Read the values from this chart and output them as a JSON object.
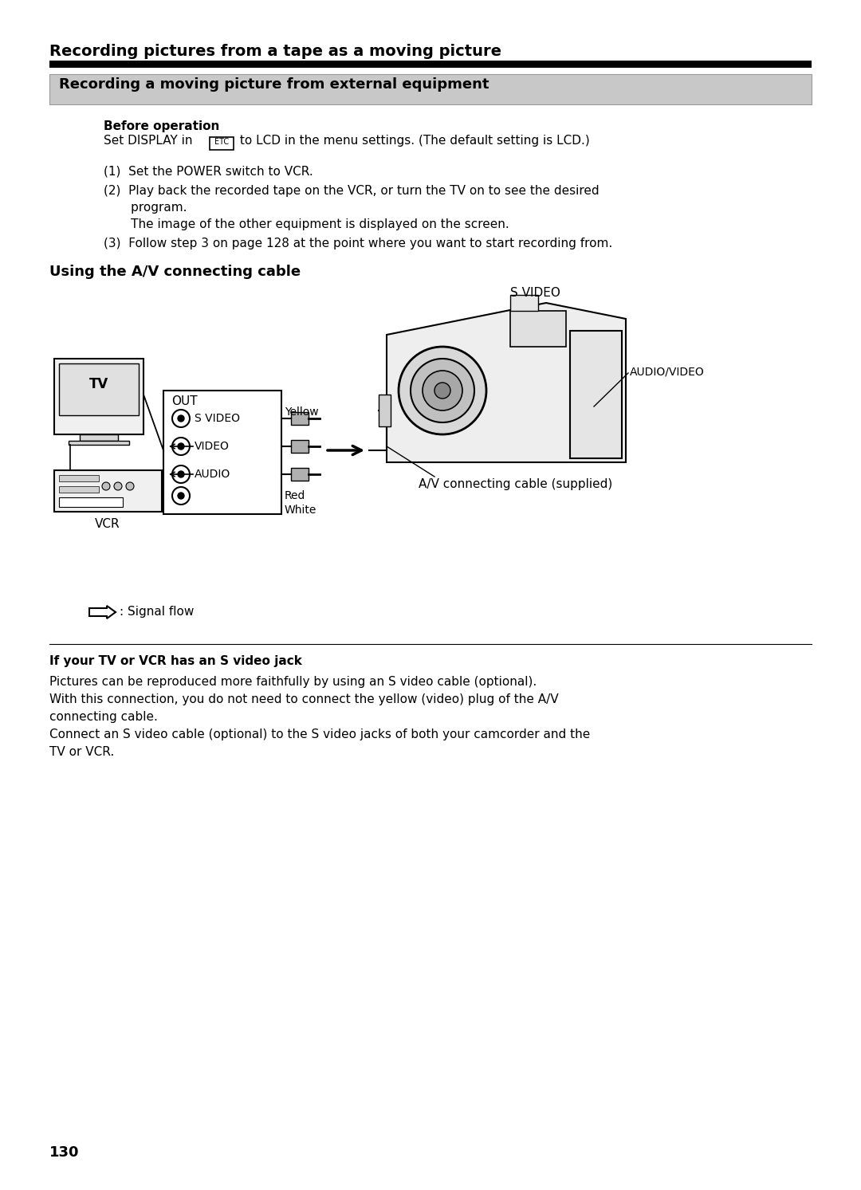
{
  "page_number": "130",
  "main_title": "Recording pictures from a tape as a moving picture",
  "section_title": "Recording a moving picture from external equipment",
  "before_op_label": "Before operation",
  "step1": "(1)  Set the POWER switch to VCR.",
  "step2a": "(2)  Play back the recorded tape on the VCR, or turn the TV on to see the desired",
  "step2b": "       program.",
  "step2c": "       The image of the other equipment is displayed on the screen.",
  "step3": "(3)  Follow step 3 on page 128 at the point where you want to start recording from.",
  "sub_heading": "Using the A/V connecting cable",
  "lbl_out": "OUT",
  "lbl_svideo": "S VIDEO",
  "lbl_video": "VIDEO",
  "lbl_audio": "AUDIO",
  "lbl_yellow": "Yellow",
  "lbl_red": "Red",
  "lbl_white": "White",
  "lbl_tv": "TV",
  "lbl_vcr": "VCR",
  "lbl_signal": ": Signal flow",
  "lbl_av_cable": "A/V connecting cable (supplied)",
  "lbl_s_video_top": "S VIDEO",
  "lbl_audio_video": "AUDIO/VIDEO",
  "note_title": "If your TV or VCR has an S video jack",
  "note_line1": "Pictures can be reproduced more faithfully by using an S video cable (optional).",
  "note_line2": "With this connection, you do not need to connect the yellow (video) plug of the A/V",
  "note_line3": "connecting cable.",
  "note_line4": "Connect an S video cable (optional) to the S video jacks of both your camcorder and the",
  "note_line5": "TV or VCR.",
  "bg_color": "#ffffff"
}
